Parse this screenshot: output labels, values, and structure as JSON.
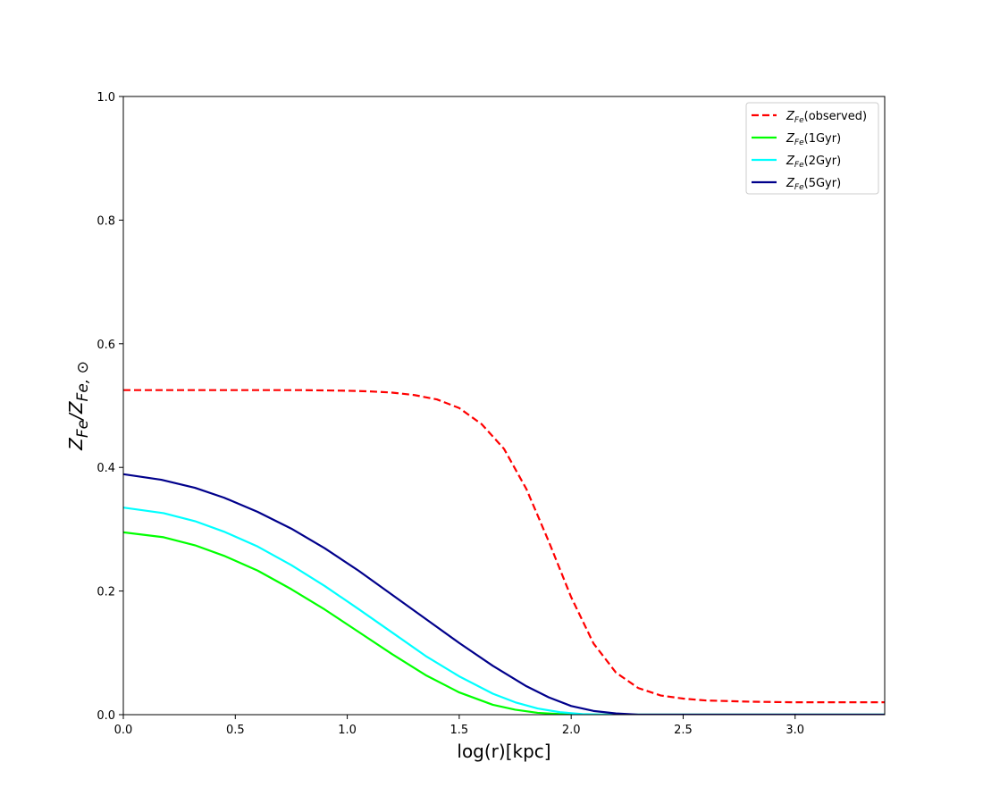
{
  "chart_data": {
    "type": "line",
    "xlabel": "log(r)[kpc]",
    "ylabel": {
      "base": "Z",
      "sub": "Fe",
      "sep": "/",
      "base2": "Z",
      "sub2": "Fe, ⊙"
    },
    "xlim": [
      0.0,
      3.4
    ],
    "ylim": [
      0.0,
      1.0
    ],
    "xticks": [
      0.0,
      0.5,
      1.0,
      1.5,
      2.0,
      2.5,
      3.0
    ],
    "xtick_labels": [
      "0.0",
      "0.5",
      "1.0",
      "1.5",
      "2.0",
      "2.5",
      "3.0"
    ],
    "yticks": [
      0.0,
      0.2,
      0.4,
      0.6,
      0.8,
      1.0
    ],
    "ytick_labels": [
      "0.0",
      "0.2",
      "0.4",
      "0.6",
      "0.8",
      "1.0"
    ],
    "grid": false,
    "legend_position": "top-right",
    "series": [
      {
        "name": "observed",
        "legend": {
          "base": "Z",
          "sub": "Fe",
          "rest": "(observed)"
        },
        "color": "#ff0000",
        "dashed": true,
        "points": [
          [
            0.0,
            0.525
          ],
          [
            0.2,
            0.525
          ],
          [
            0.4,
            0.525
          ],
          [
            0.6,
            0.525
          ],
          [
            0.8,
            0.525
          ],
          [
            1.0,
            0.524
          ],
          [
            1.1,
            0.523
          ],
          [
            1.2,
            0.521
          ],
          [
            1.3,
            0.517
          ],
          [
            1.4,
            0.51
          ],
          [
            1.5,
            0.496
          ],
          [
            1.6,
            0.47
          ],
          [
            1.7,
            0.43
          ],
          [
            1.8,
            0.365
          ],
          [
            1.9,
            0.28
          ],
          [
            2.0,
            0.19
          ],
          [
            2.1,
            0.115
          ],
          [
            2.2,
            0.068
          ],
          [
            2.3,
            0.043
          ],
          [
            2.4,
            0.031
          ],
          [
            2.5,
            0.026
          ],
          [
            2.6,
            0.023
          ],
          [
            2.8,
            0.021
          ],
          [
            3.0,
            0.02
          ],
          [
            3.2,
            0.02
          ],
          [
            3.4,
            0.02
          ]
        ]
      },
      {
        "name": "1Gyr",
        "legend": {
          "base": "Z",
          "sub": "Fe",
          "rest": "(1Gyr)"
        },
        "color": "#00ff00",
        "dashed": false,
        "points": [
          [
            0.0,
            0.295
          ],
          [
            0.18,
            0.287
          ],
          [
            0.32,
            0.274
          ],
          [
            0.45,
            0.257
          ],
          [
            0.6,
            0.233
          ],
          [
            0.75,
            0.203
          ],
          [
            0.9,
            0.17
          ],
          [
            1.05,
            0.134
          ],
          [
            1.2,
            0.098
          ],
          [
            1.35,
            0.064
          ],
          [
            1.5,
            0.036
          ],
          [
            1.65,
            0.016
          ],
          [
            1.75,
            0.008
          ],
          [
            1.85,
            0.003
          ],
          [
            1.95,
            0.001
          ],
          [
            2.05,
            0.0
          ],
          [
            3.4,
            0.0
          ]
        ]
      },
      {
        "name": "2Gyr",
        "legend": {
          "base": "Z",
          "sub": "Fe",
          "rest": "(2Gyr)"
        },
        "color": "#00ffff",
        "dashed": false,
        "points": [
          [
            0.0,
            0.335
          ],
          [
            0.18,
            0.326
          ],
          [
            0.32,
            0.313
          ],
          [
            0.45,
            0.296
          ],
          [
            0.6,
            0.272
          ],
          [
            0.75,
            0.242
          ],
          [
            0.9,
            0.208
          ],
          [
            1.05,
            0.171
          ],
          [
            1.2,
            0.133
          ],
          [
            1.35,
            0.095
          ],
          [
            1.5,
            0.062
          ],
          [
            1.65,
            0.034
          ],
          [
            1.75,
            0.02
          ],
          [
            1.85,
            0.01
          ],
          [
            1.95,
            0.004
          ],
          [
            2.05,
            0.001
          ],
          [
            2.15,
            0.0
          ],
          [
            3.4,
            0.0
          ]
        ]
      },
      {
        "name": "5Gyr",
        "legend": {
          "base": "Z",
          "sub": "Fe",
          "rest": "(5Gyr)"
        },
        "color": "#00008b",
        "dashed": false,
        "points": [
          [
            0.0,
            0.389
          ],
          [
            0.17,
            0.38
          ],
          [
            0.32,
            0.367
          ],
          [
            0.45,
            0.351
          ],
          [
            0.6,
            0.328
          ],
          [
            0.75,
            0.301
          ],
          [
            0.9,
            0.269
          ],
          [
            1.05,
            0.233
          ],
          [
            1.2,
            0.194
          ],
          [
            1.35,
            0.155
          ],
          [
            1.5,
            0.116
          ],
          [
            1.65,
            0.079
          ],
          [
            1.8,
            0.046
          ],
          [
            1.9,
            0.028
          ],
          [
            2.0,
            0.014
          ],
          [
            2.1,
            0.006
          ],
          [
            2.2,
            0.002
          ],
          [
            2.3,
            0.0
          ],
          [
            3.4,
            0.0
          ]
        ]
      }
    ]
  }
}
